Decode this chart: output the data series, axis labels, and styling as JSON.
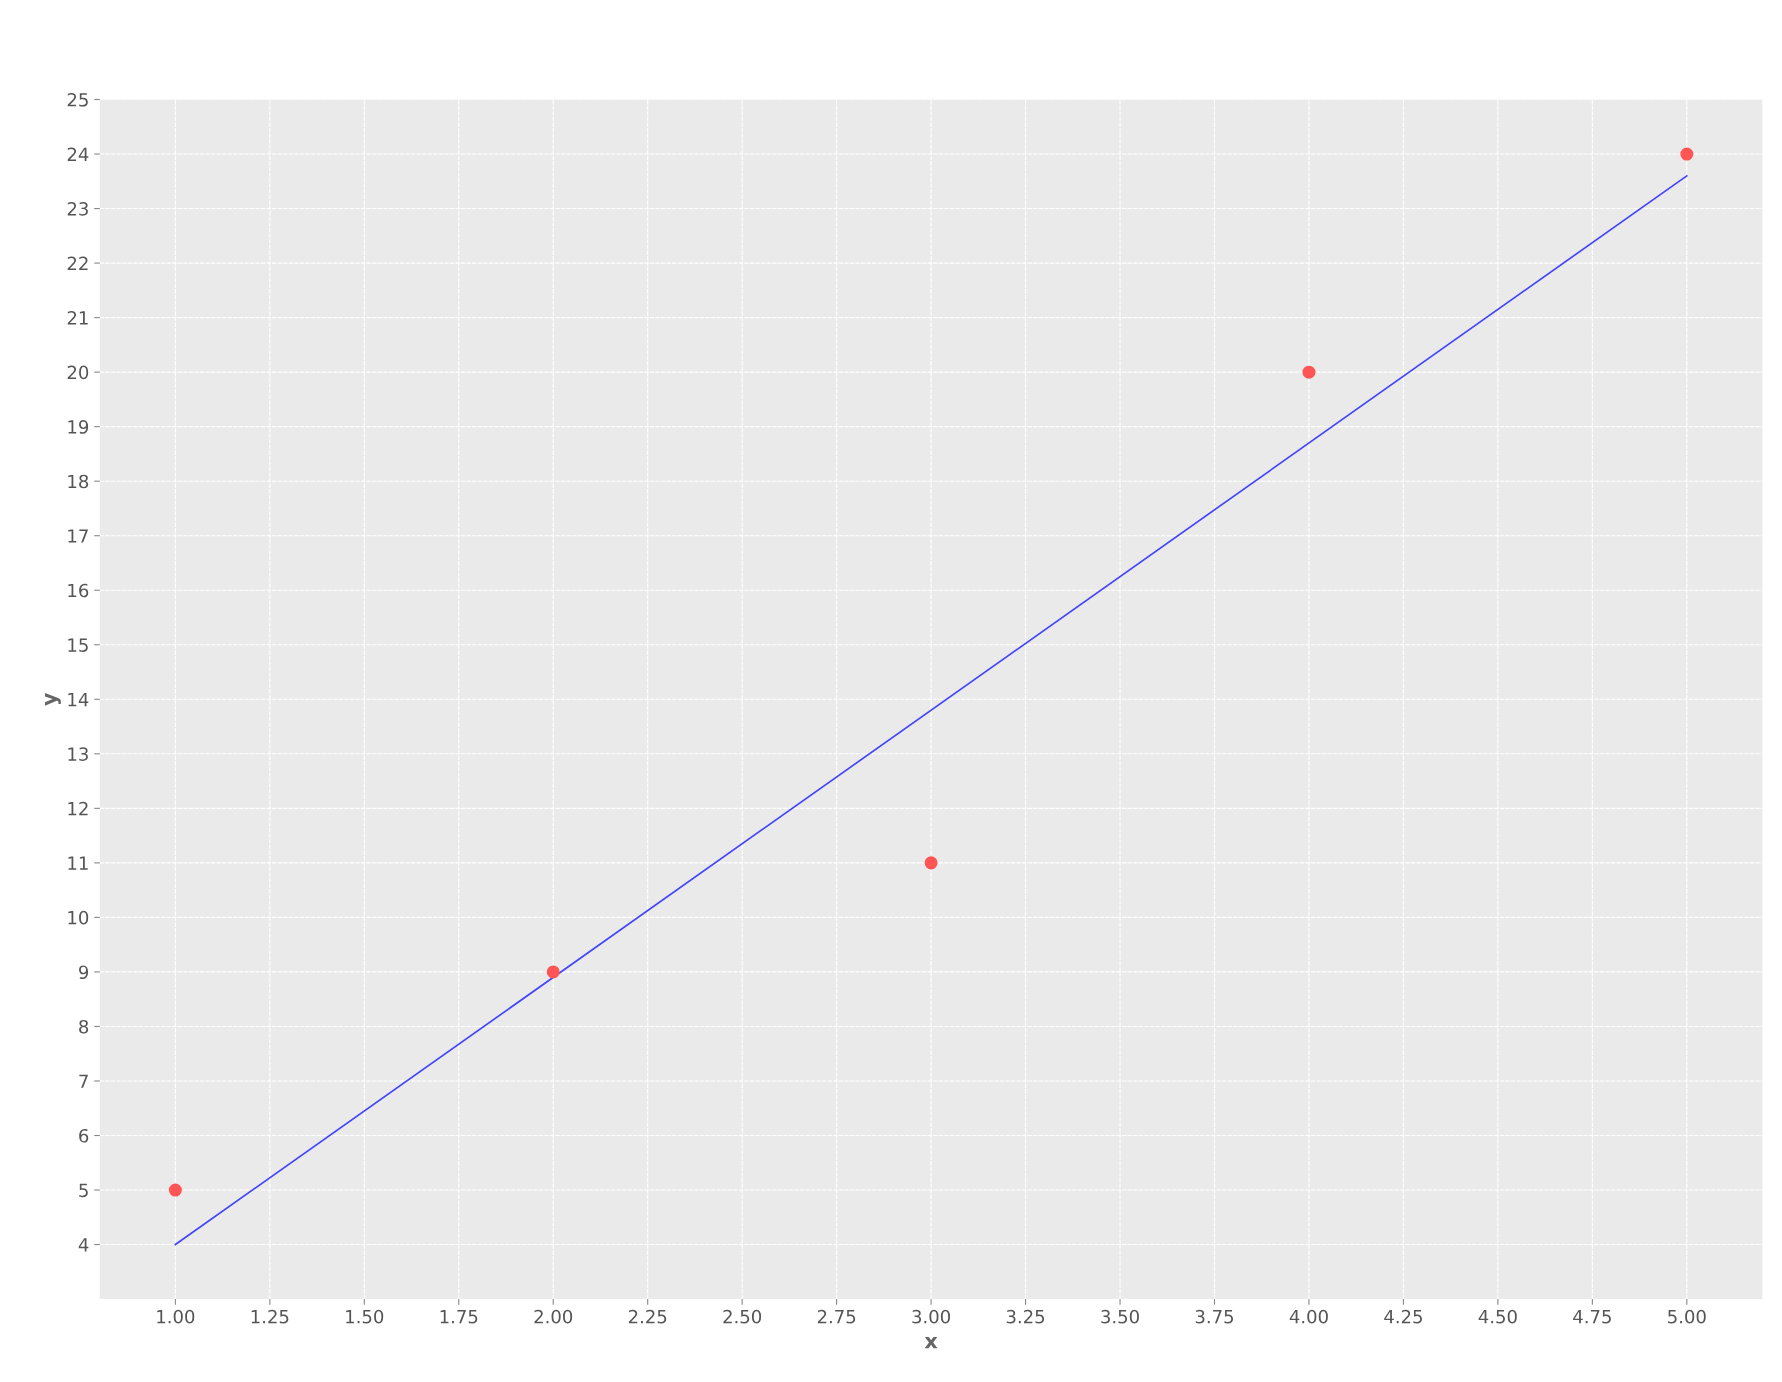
{
  "chart_data": {
    "type": "scatter",
    "xlabel": "x",
    "ylabel": "y",
    "xlim": [
      0.8,
      5.2
    ],
    "ylim": [
      3.0,
      25
    ],
    "xticks": [
      {
        "value": 1,
        "label": "1.00"
      },
      {
        "value": 1.25,
        "label": "1.25"
      },
      {
        "value": 1.5,
        "label": "1.50"
      },
      {
        "value": 1.75,
        "label": "1.75"
      },
      {
        "value": 2,
        "label": "2.00"
      },
      {
        "value": 2.25,
        "label": "2.25"
      },
      {
        "value": 2.5,
        "label": "2.50"
      },
      {
        "value": 2.75,
        "label": "2.75"
      },
      {
        "value": 3,
        "label": "3.00"
      },
      {
        "value": 3.25,
        "label": "3.25"
      },
      {
        "value": 3.5,
        "label": "3.50"
      },
      {
        "value": 3.75,
        "label": "3.75"
      },
      {
        "value": 4,
        "label": "4.00"
      },
      {
        "value": 4.25,
        "label": "4.25"
      },
      {
        "value": 4.5,
        "label": "4.50"
      },
      {
        "value": 4.75,
        "label": "4.75"
      },
      {
        "value": 5,
        "label": "5.00"
      }
    ],
    "yticks": [
      4,
      5,
      6,
      7,
      8,
      9,
      10,
      11,
      12,
      13,
      14,
      15,
      16,
      17,
      18,
      19,
      20,
      21,
      22,
      23,
      24,
      25
    ],
    "grid": true,
    "series": [
      {
        "marker": "circle",
        "color": "#ff5555",
        "x": [
          1,
          2,
          3,
          4,
          5
        ],
        "values": [
          5,
          9,
          11,
          20,
          24
        ]
      },
      {
        "type": "line",
        "marker": "none",
        "color": "#4444ff",
        "x": [
          1,
          5
        ],
        "values": [
          4.0,
          23.6
        ]
      }
    ]
  }
}
